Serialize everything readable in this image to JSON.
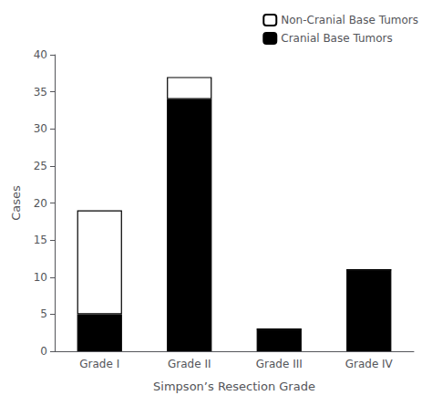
{
  "chart_data": {
    "type": "bar",
    "stacked": true,
    "xlabel": "Simpson’s Resection Grade",
    "ylabel": "Cases",
    "categories": [
      "Grade I",
      "Grade II",
      "Grade III",
      "Grade IV"
    ],
    "series": [
      {
        "name": "Cranial Base Tumors",
        "color": "#000000",
        "values": [
          5,
          34,
          3,
          11
        ]
      },
      {
        "name": "Non-Cranial Base Tumors",
        "color": "#ffffff",
        "values": [
          14,
          3,
          0,
          0
        ]
      }
    ],
    "ylim": [
      0,
      40
    ],
    "yticks": [
      0,
      5,
      10,
      15,
      20,
      25,
      30,
      35,
      40
    ],
    "legend": "upper right",
    "grid": false
  }
}
